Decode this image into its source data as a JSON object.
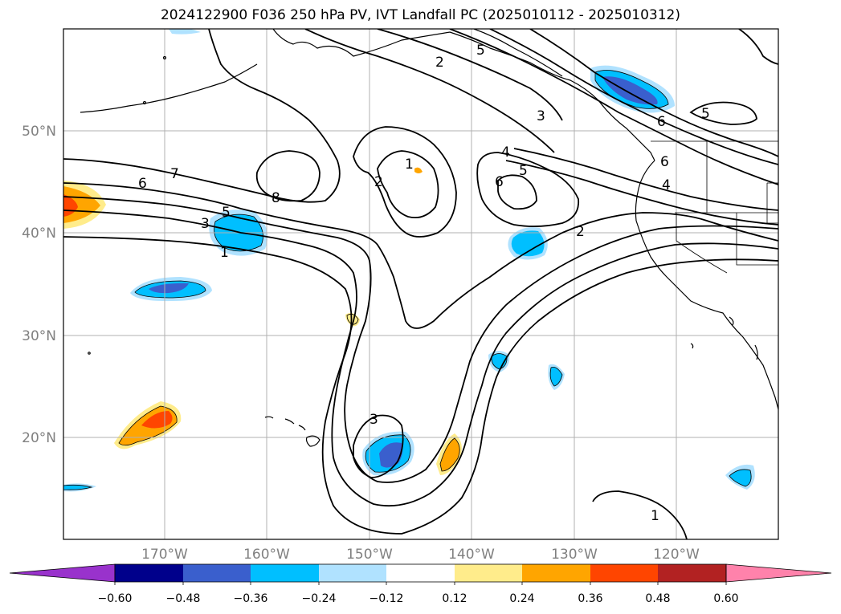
{
  "title": "2024122900 F036 250 hPa PV, IVT Landfall PC (2025010112 - 2025010312)",
  "map": {
    "lon_labels": [
      "170°W",
      "160°W",
      "150°W",
      "140°W",
      "130°W",
      "120°W"
    ],
    "lat_labels": [
      "50°N",
      "40°N",
      "30°N",
      "20°N"
    ],
    "contour_labels": [
      "7",
      "6",
      "8",
      "5",
      "3",
      "1",
      "2",
      "1",
      "2",
      "6",
      "4",
      "5",
      "2",
      "5",
      "3",
      "6",
      "6",
      "4",
      "5",
      "3",
      "1"
    ]
  },
  "colorbar": {
    "tick_labels": [
      "−0.60",
      "−0.48",
      "−0.36",
      "−0.24",
      "−0.12",
      "0.12",
      "0.24",
      "0.36",
      "0.48",
      "0.60"
    ],
    "colors": [
      "#9932cc",
      "#00008b",
      "#3a5fcd",
      "#00bfff",
      "#b0e2ff",
      "#ffffff",
      "#ffec8b",
      "#ffa500",
      "#ff4500",
      "#b22222",
      "#ff82ab"
    ]
  },
  "shading_colors": {
    "light_blue": "#b0e2ff",
    "blue": "#00bfff",
    "royal": "#3a5fcd",
    "yellow": "#ffec8b",
    "orange": "#ffa500",
    "red": "#ff4500"
  }
}
